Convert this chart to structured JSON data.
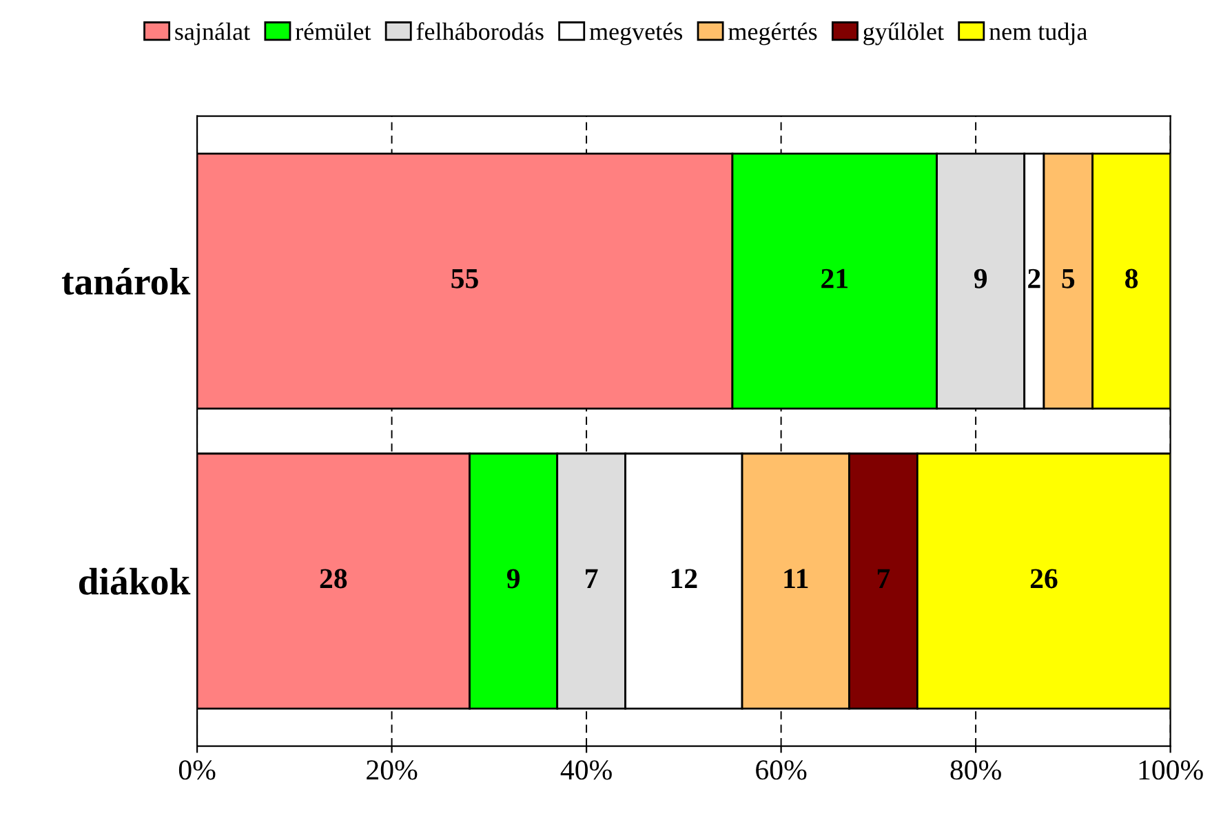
{
  "chart_data": {
    "type": "bar",
    "orientation": "horizontal",
    "stacked": true,
    "categories": [
      "tanárok",
      "diákok"
    ],
    "series": [
      {
        "name": "sajnálat",
        "color": "#ff8080",
        "values": [
          55,
          28
        ]
      },
      {
        "name": "rémület",
        "color": "#00ff00",
        "values": [
          21,
          9
        ]
      },
      {
        "name": "felháborodás",
        "color": "#dddddd",
        "values": [
          9,
          7
        ]
      },
      {
        "name": "megvetés",
        "color": "#ffffff",
        "values": [
          2,
          12
        ]
      },
      {
        "name": "megértés",
        "color": "#ffbf6a",
        "values": [
          5,
          11
        ]
      },
      {
        "name": "gyűlölet",
        "color": "#800000",
        "values": [
          null,
          7
        ]
      },
      {
        "name": "nem tudja",
        "color": "#ffff00",
        "values": [
          8,
          26
        ]
      }
    ],
    "xlim": [
      0,
      100
    ],
    "xticks": [
      {
        "value": 0,
        "label": "0%"
      },
      {
        "value": 20,
        "label": "20%"
      },
      {
        "value": 40,
        "label": "40%"
      },
      {
        "value": 60,
        "label": "60%"
      },
      {
        "value": 80,
        "label": "80%"
      },
      {
        "value": 100,
        "label": "100%"
      }
    ],
    "grid": "x",
    "legend": "top",
    "data_labels": true
  }
}
